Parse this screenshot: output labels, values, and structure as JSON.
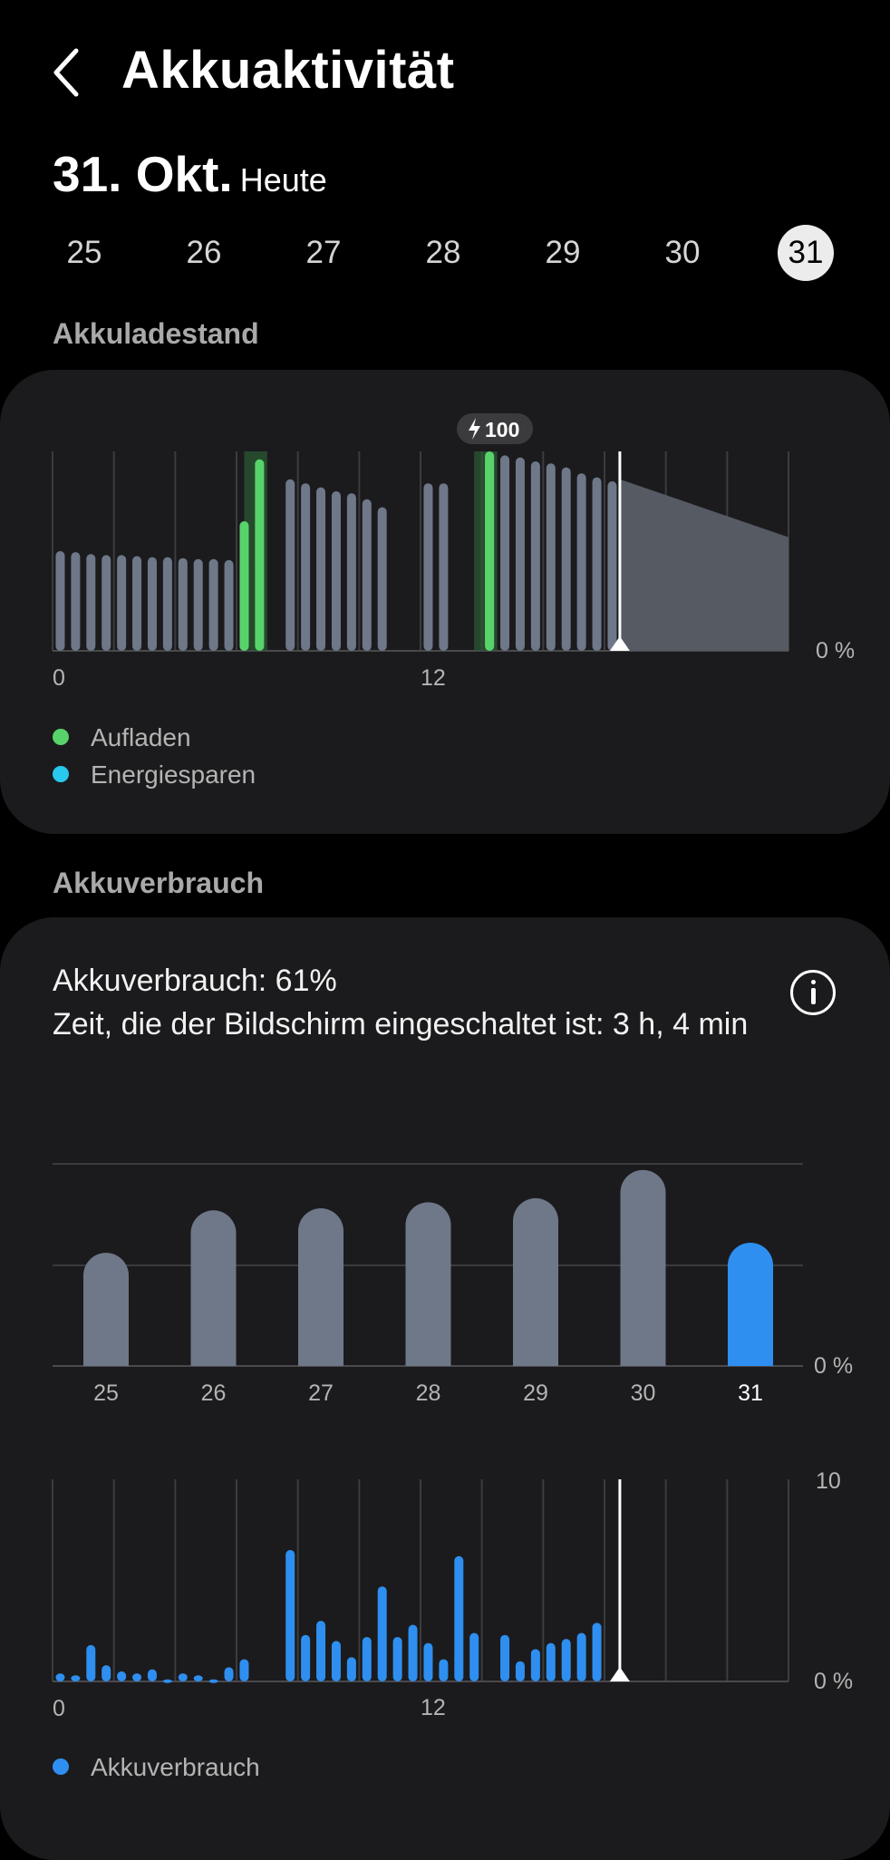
{
  "header": {
    "title": "Akkuaktivität"
  },
  "date": {
    "main": "31. Okt.",
    "sub": "Heute"
  },
  "days": [
    "25",
    "26",
    "27",
    "28",
    "29",
    "30",
    "31"
  ],
  "selected_day": "31",
  "level_section": {
    "label": "Akkuladestand",
    "charge_badge": "100",
    "x_labels": [
      "0",
      "12"
    ],
    "y_label": "0 %",
    "legend": [
      {
        "label": "Aufladen",
        "color": "#58d36a"
      },
      {
        "label": "Energiesparen",
        "color": "#29c8ee"
      }
    ]
  },
  "usage_section": {
    "label": "Akkuverbrauch",
    "summary": "Akkuverbrauch: 61%",
    "screen_time": "Zeit, die der Bildschirm eingeschaltet ist: 3 h, 4 min",
    "daily_y_label": "0 %",
    "hourly_y_top": "10",
    "hourly_y_bottom": "0 %",
    "hourly_x_labels": [
      "0",
      "12"
    ],
    "legend": [
      {
        "label": "Akkuverbrauch",
        "color": "#2e8ff0"
      }
    ]
  },
  "chart_data": [
    {
      "type": "bar",
      "title": "Akkuladestand",
      "x_unit": "hour of day",
      "series": [
        {
          "name": "Akkuladestand",
          "color": "#6e7889",
          "values": [
            [
              0.25,
              50
            ],
            [
              0.75,
              49.5
            ],
            [
              1.25,
              48.5
            ],
            [
              1.75,
              48
            ],
            [
              2.25,
              48
            ],
            [
              2.75,
              47.5
            ],
            [
              3.25,
              47
            ],
            [
              3.75,
              47
            ],
            [
              4.25,
              46.5
            ],
            [
              4.75,
              46
            ],
            [
              5.25,
              46
            ],
            [
              5.75,
              45.5
            ],
            [
              6.25,
              45
            ],
            [
              7.75,
              86
            ],
            [
              8.25,
              84
            ],
            [
              8.75,
              82
            ],
            [
              9.25,
              80
            ],
            [
              9.75,
              79
            ],
            [
              10.25,
              76
            ],
            [
              10.75,
              72
            ],
            [
              12.25,
              84
            ],
            [
              12.75,
              84
            ],
            [
              14.25,
              99
            ],
            [
              14.75,
              98
            ],
            [
              15.25,
              97
            ],
            [
              15.75,
              95
            ],
            [
              16.25,
              94
            ],
            [
              16.75,
              92
            ],
            [
              17.25,
              89
            ],
            [
              17.75,
              87
            ],
            [
              18.25,
              85
            ]
          ]
        },
        {
          "name": "Aufladen",
          "color": "#58d36a",
          "values": [
            [
              6.25,
              65
            ],
            [
              6.75,
              96
            ],
            [
              14.25,
              100
            ]
          ]
        }
      ],
      "charging_periods": [
        [
          6.25,
          7.0
        ],
        [
          13.75,
          14.5
        ]
      ],
      "forecast": {
        "x": [
          18.5,
          24
        ],
        "y": [
          86,
          57
        ]
      },
      "current_time": 18.5,
      "xlim": [
        0,
        24
      ],
      "ylim": [
        0,
        100
      ],
      "x_tick_labels": [
        {
          "x": 0,
          "label": "0"
        },
        {
          "x": 12,
          "label": "12"
        }
      ]
    },
    {
      "type": "bar",
      "title": "Akkuverbrauch",
      "categories": [
        "25",
        "26",
        "27",
        "28",
        "29",
        "30",
        "31"
      ],
      "values": [
        56,
        77,
        78,
        81,
        83,
        97,
        61
      ],
      "ylim": [
        0,
        100
      ],
      "highlight_category": "31",
      "colors": {
        "default": "#6e7889",
        "highlight": "#2e8ff0"
      }
    },
    {
      "type": "bar",
      "x_unit": "hour of day",
      "series": [
        {
          "name": "Akkuverbrauch",
          "color": "#2e8ff0",
          "values": [
            [
              0.25,
              0.4
            ],
            [
              0.75,
              0.3
            ],
            [
              1.25,
              1.8
            ],
            [
              1.75,
              0.8
            ],
            [
              2.25,
              0.5
            ],
            [
              2.75,
              0.4
            ],
            [
              3.25,
              0.6
            ],
            [
              3.75,
              0.1
            ],
            [
              4.25,
              0.4
            ],
            [
              4.75,
              0.3
            ],
            [
              5.25,
              0.1
            ],
            [
              5.75,
              0.7
            ],
            [
              6.25,
              1.1
            ],
            [
              7.75,
              6.5
            ],
            [
              8.25,
              2.3
            ],
            [
              8.75,
              3.0
            ],
            [
              9.25,
              2.0
            ],
            [
              9.75,
              1.2
            ],
            [
              10.25,
              2.2
            ],
            [
              10.75,
              4.7
            ],
            [
              11.25,
              2.2
            ],
            [
              11.75,
              2.8
            ],
            [
              12.25,
              1.9
            ],
            [
              12.75,
              1.1
            ],
            [
              13.25,
              6.2
            ],
            [
              13.75,
              2.4
            ],
            [
              14.75,
              2.3
            ],
            [
              15.25,
              1.0
            ],
            [
              15.75,
              1.6
            ],
            [
              16.25,
              1.9
            ],
            [
              16.75,
              2.1
            ],
            [
              17.25,
              2.4
            ],
            [
              17.75,
              2.9
            ]
          ]
        }
      ],
      "current_time": 18.5,
      "xlim": [
        0,
        24
      ],
      "ylim": [
        0,
        10
      ],
      "x_tick_labels": [
        {
          "x": 0,
          "label": "0"
        },
        {
          "x": 12,
          "label": "12"
        }
      ]
    }
  ]
}
